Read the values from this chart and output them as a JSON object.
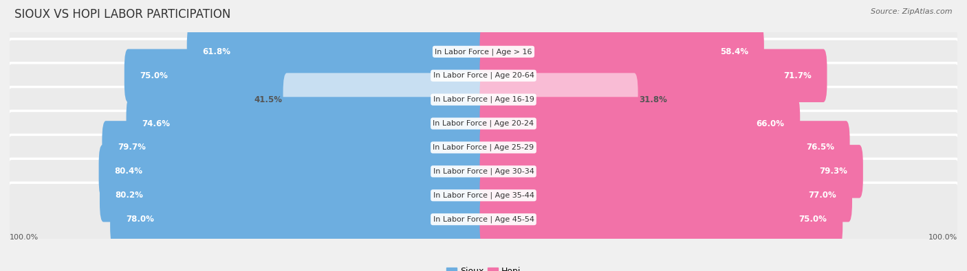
{
  "title": "SIOUX VS HOPI LABOR PARTICIPATION",
  "source": "Source: ZipAtlas.com",
  "categories": [
    "In Labor Force | Age > 16",
    "In Labor Force | Age 20-64",
    "In Labor Force | Age 16-19",
    "In Labor Force | Age 20-24",
    "In Labor Force | Age 25-29",
    "In Labor Force | Age 30-34",
    "In Labor Force | Age 35-44",
    "In Labor Force | Age 45-54"
  ],
  "sioux_values": [
    61.8,
    75.0,
    41.5,
    74.6,
    79.7,
    80.4,
    80.2,
    78.0
  ],
  "hopi_values": [
    58.4,
    71.7,
    31.8,
    66.0,
    76.5,
    79.3,
    77.0,
    75.0
  ],
  "sioux_color": "#6daee0",
  "sioux_color_light": "#c8dff2",
  "hopi_color": "#f272a8",
  "hopi_color_light": "#f9bcd5",
  "bg_color": "#f0f0f0",
  "bar_bg_color": "#e2e2e2",
  "row_bg_color": "#ebebeb",
  "title_fontsize": 12,
  "label_fontsize": 8.0,
  "value_fontsize": 8.5,
  "legend_fontsize": 9,
  "source_fontsize": 8
}
